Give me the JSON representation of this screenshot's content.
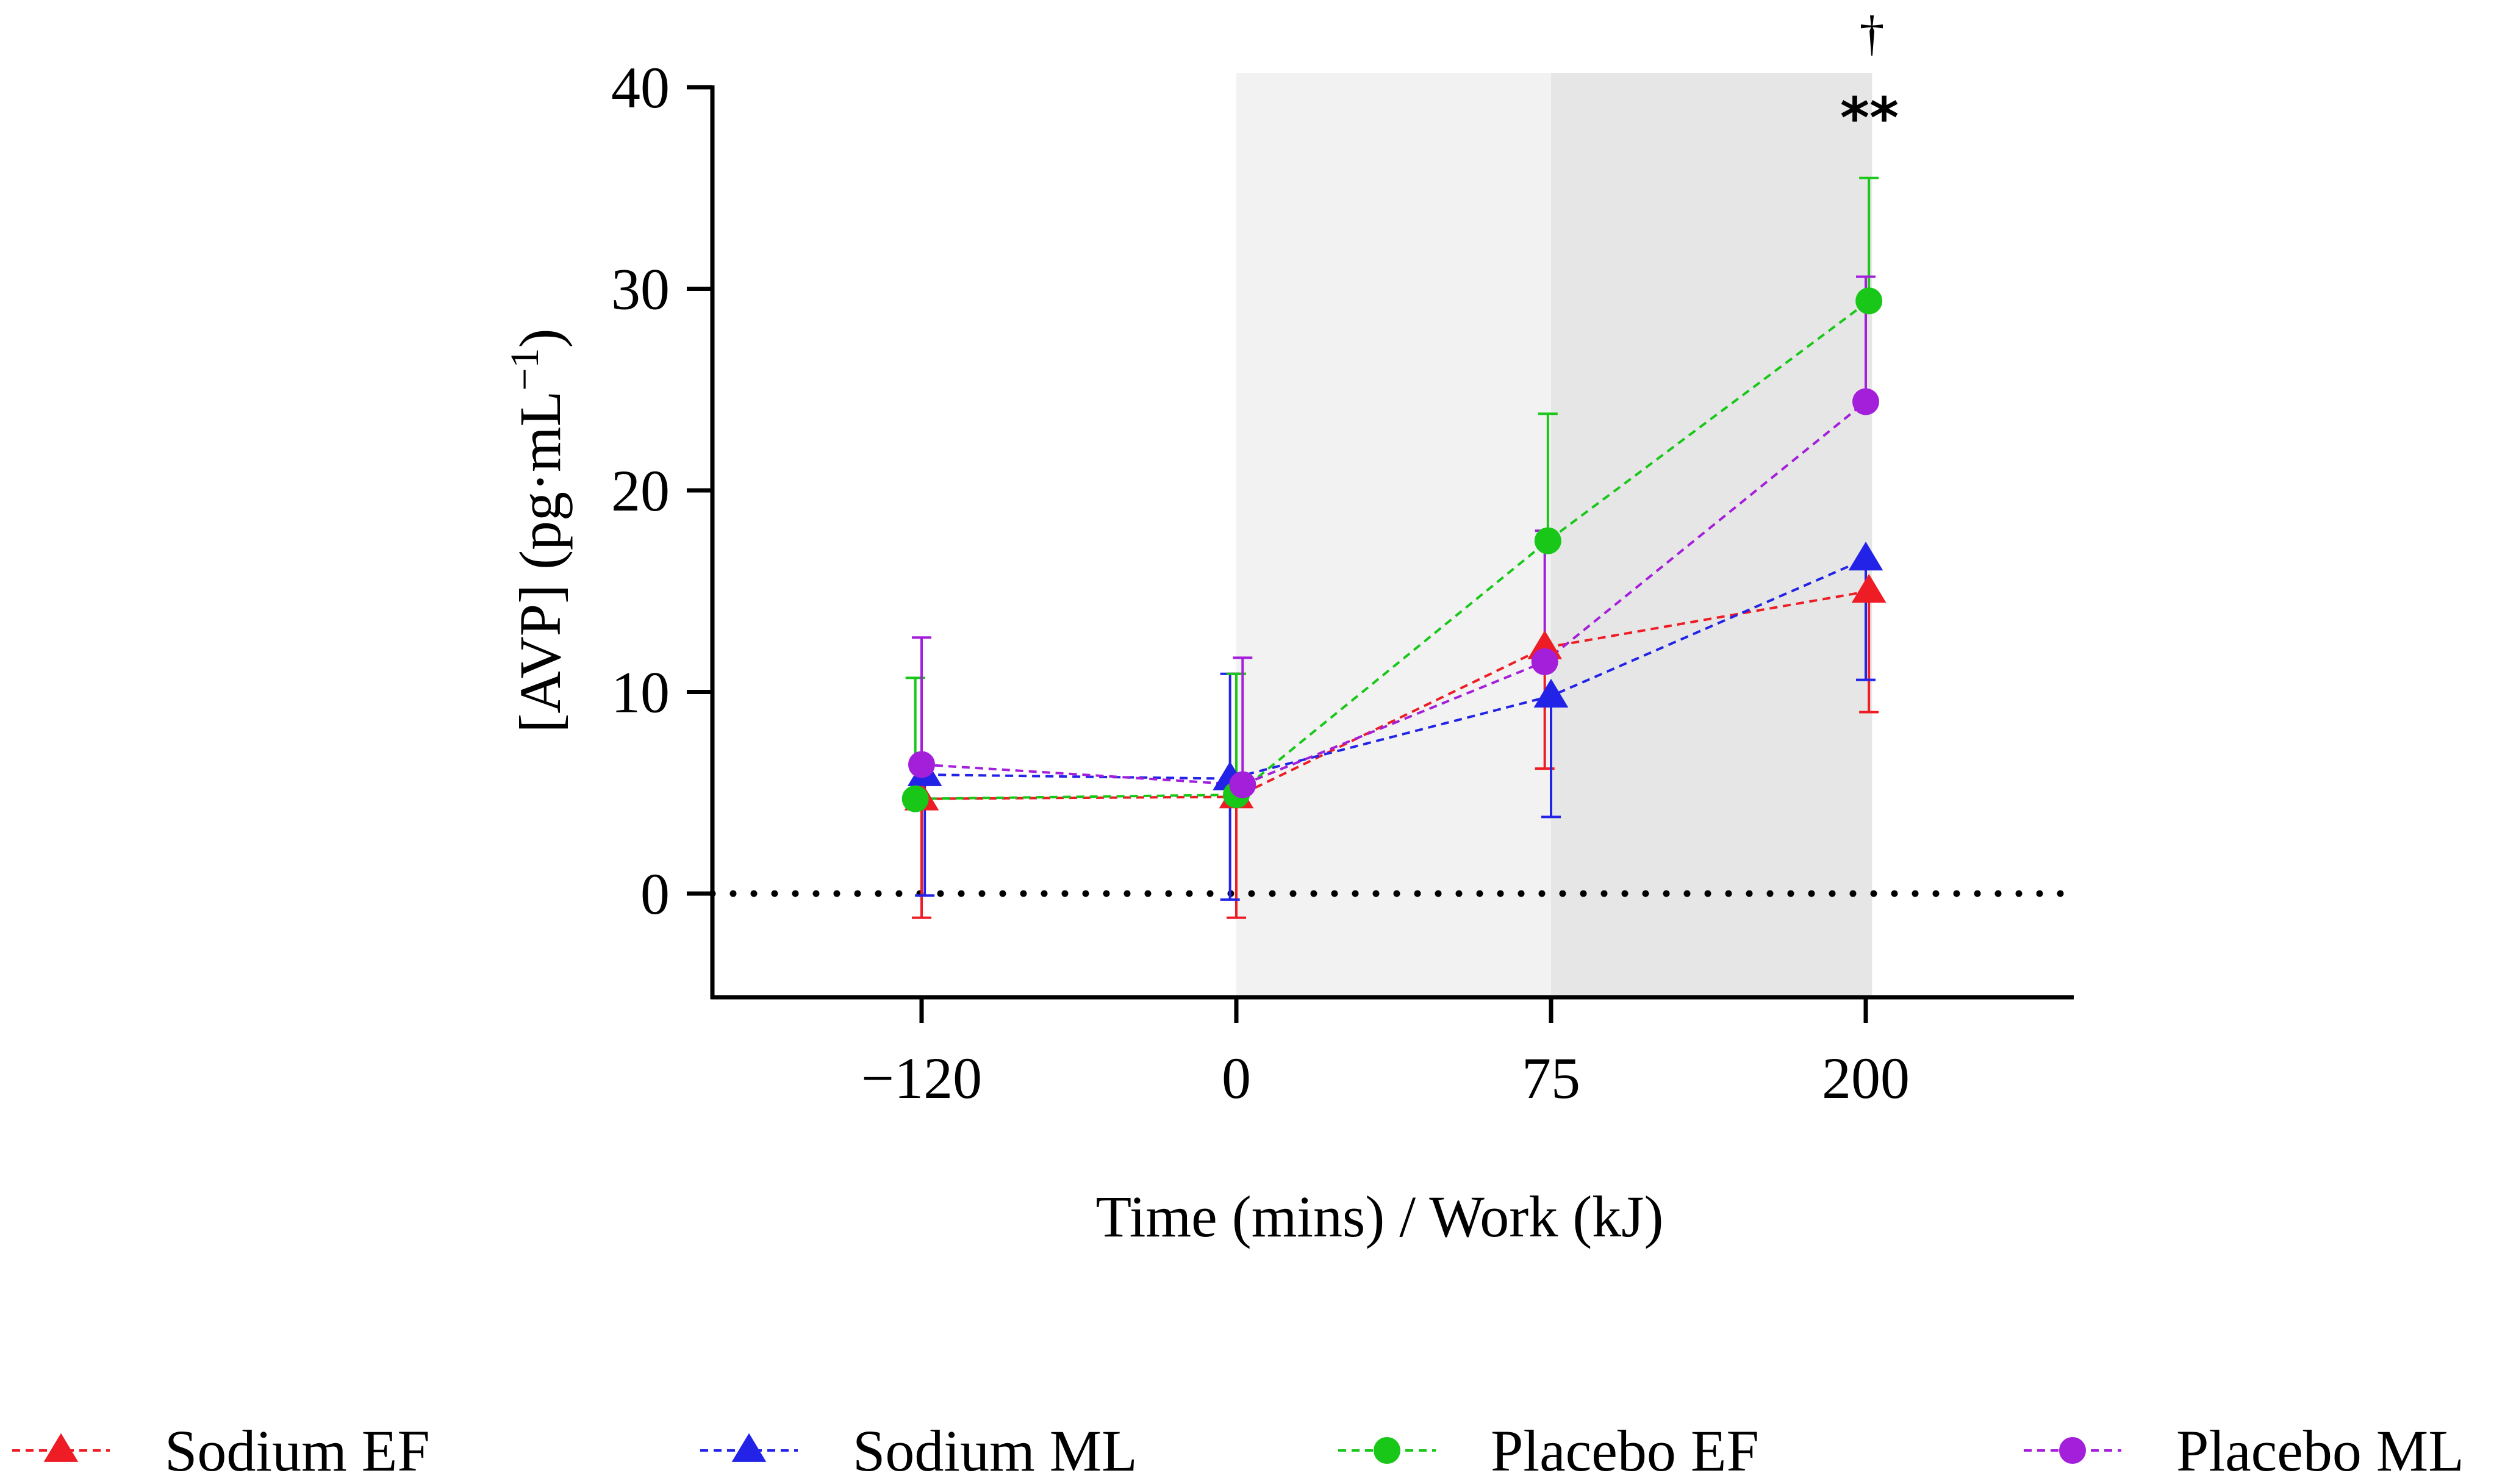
{
  "chart_data": {
    "type": "line",
    "title": "",
    "xlabel": "Time (mins) / Work (kJ)",
    "ylabel": "[AVP] (pg·mL",
    "ylabel_superscript": "−1",
    "ylabel_close": ")",
    "ylim": [
      -5,
      40
    ],
    "yticks": [
      0,
      10,
      20,
      30,
      40
    ],
    "categories": [
      "−120",
      "0",
      "75",
      "200"
    ],
    "x_extent": [
      -0.66,
      3.66
    ],
    "reference_line": {
      "y": 0,
      "style": "dotted"
    },
    "shaded_regions": [
      {
        "from": 1,
        "to": 2,
        "color": "#f2f2f2"
      },
      {
        "from": 2,
        "to": 3.02,
        "color": "#e6e6e6"
      }
    ],
    "annotations": [
      {
        "text": "†",
        "category_index": 3,
        "y_above": "top"
      },
      {
        "text": "**",
        "category_index": 3,
        "y_above": "top"
      }
    ],
    "series": [
      {
        "name": "Sodium EF",
        "color": "#ee1c25",
        "marker": "triangle",
        "x_offset": [
          0,
          0,
          -0.02,
          0.01
        ],
        "values": [
          4.7,
          4.8,
          12.2,
          15.0
        ],
        "err_upper": [
          4.7,
          10.9,
          12.2,
          15.0
        ],
        "err_lower": [
          -1.2,
          -1.2,
          6.2,
          9.0
        ]
      },
      {
        "name": "Sodium ML",
        "color": "#2323e8",
        "marker": "triangle",
        "x_offset": [
          0.01,
          -0.02,
          0.0,
          0.0
        ],
        "values": [
          5.9,
          5.7,
          9.8,
          16.6
        ],
        "err_upper": [
          5.9,
          10.9,
          9.8,
          16.6
        ],
        "err_lower": [
          -0.1,
          -0.3,
          3.8,
          10.6
        ]
      },
      {
        "name": "Placebo EF",
        "color": "#19c719",
        "marker": "circle",
        "x_offset": [
          -0.02,
          0.0,
          -0.01,
          0.01
        ],
        "values": [
          4.7,
          4.9,
          17.5,
          29.4
        ],
        "err_upper": [
          10.7,
          10.9,
          23.8,
          35.5
        ],
        "err_lower": [
          4.7,
          4.9,
          17.5,
          29.4
        ]
      },
      {
        "name": "Placebo ML",
        "color": "#a31fd9",
        "marker": "circle",
        "x_offset": [
          0.0,
          0.02,
          -0.02,
          0.0
        ],
        "values": [
          6.4,
          5.4,
          11.5,
          24.4
        ],
        "err_upper": [
          12.7,
          11.7,
          18.0,
          30.6
        ],
        "err_lower": [
          6.4,
          5.4,
          11.5,
          24.4
        ]
      }
    ],
    "legend": {
      "position": "bottom",
      "entries": [
        "Sodium EF",
        "Sodium ML",
        "Placebo EF",
        "Placebo ML"
      ]
    }
  }
}
